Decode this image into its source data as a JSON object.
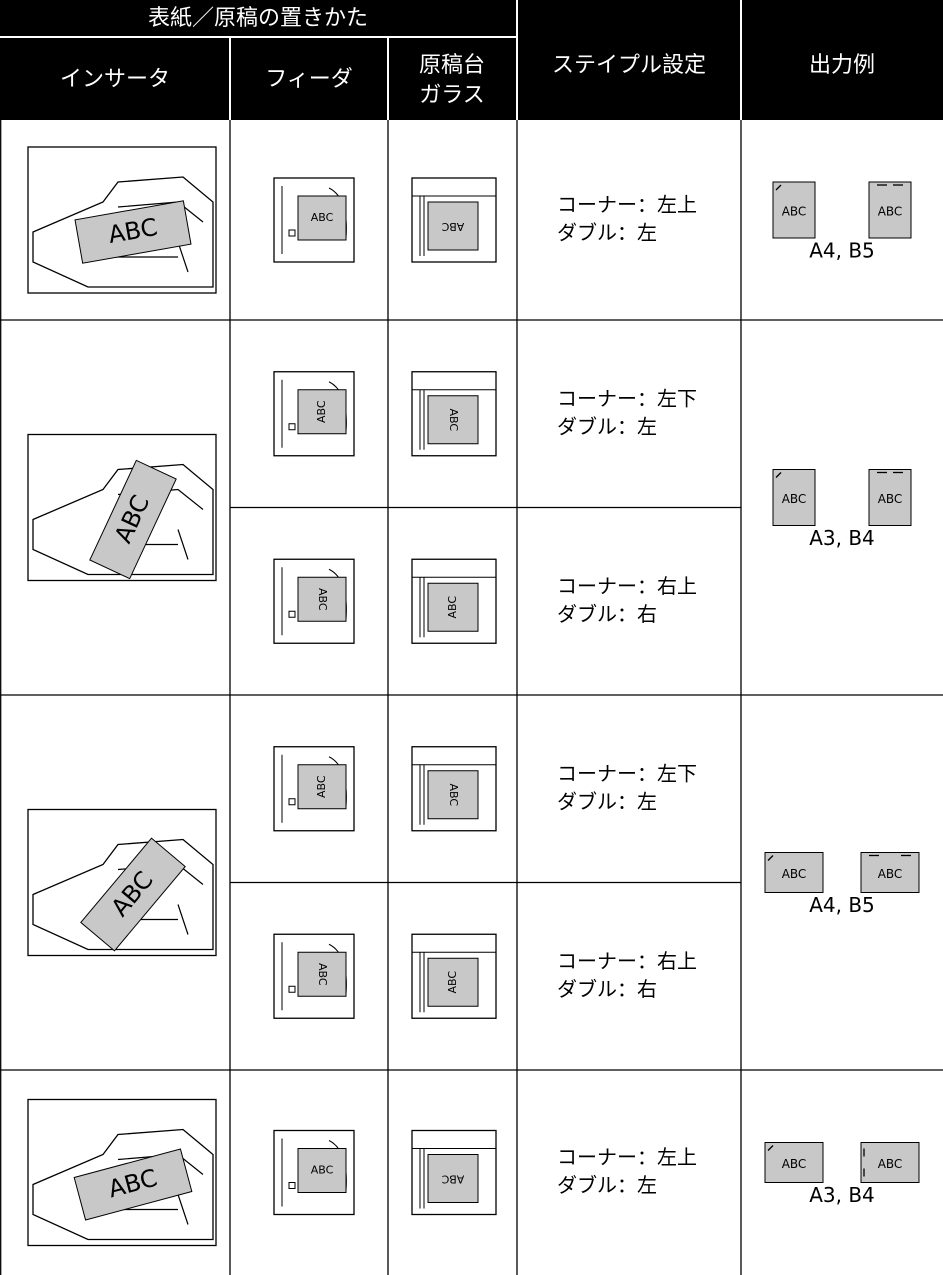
{
  "header": {
    "group": "表紙／原稿の置きかた",
    "inserter": "インサータ",
    "feeder": "フィーダ",
    "glass": [
      "原稿台",
      "ガラス"
    ],
    "staple": "ステイプル設定",
    "output": "出力例"
  },
  "sample_text": "ABC",
  "rows": [
    {
      "output_size": "A4, B5",
      "settings": [
        {
          "corner": "コーナー：左上",
          "double": "ダブル：左"
        }
      ]
    },
    {
      "output_size": "A3, B4",
      "settings": [
        {
          "corner": "コーナー：左下",
          "double": "ダブル：左"
        },
        {
          "corner": "コーナー：右上",
          "double": "ダブル：右"
        }
      ]
    },
    {
      "output_size": "A4, B5",
      "settings": [
        {
          "corner": "コーナー：左下",
          "double": "ダブル：左"
        },
        {
          "corner": "コーナー：右上",
          "double": "ダブル：右"
        }
      ]
    },
    {
      "output_size": "A3, B4",
      "settings": [
        {
          "corner": "コーナー：左上",
          "double": "ダブル：左"
        }
      ]
    }
  ]
}
